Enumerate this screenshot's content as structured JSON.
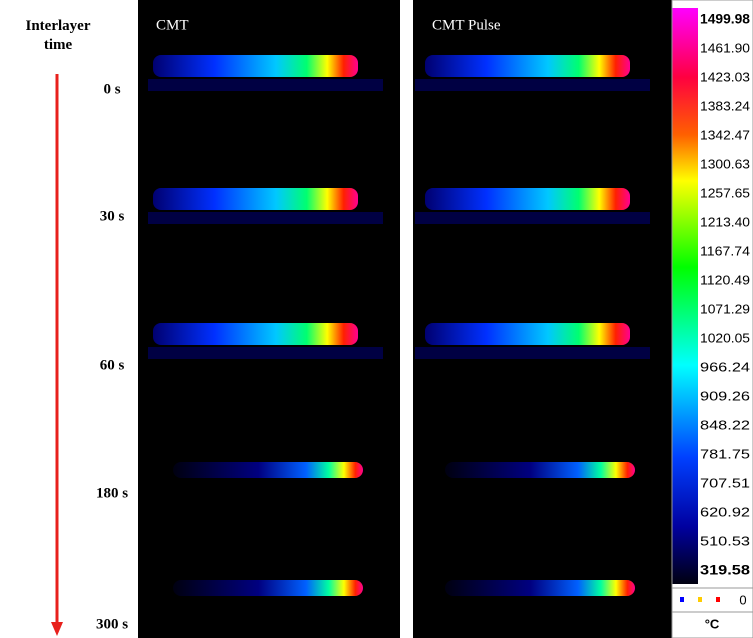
{
  "figure": {
    "axis_label": "Interlayer time",
    "times": [
      "0 s",
      "30 s",
      "60 s",
      "180 s",
      "300 s"
    ],
    "panels": [
      "CMT",
      "CMT Pulse"
    ],
    "colorbar": {
      "labels": [
        "1499.98",
        "1461.90",
        "1423.03",
        "1383.24",
        "1342.47",
        "1300.63",
        "1257.65",
        "1213.40",
        "1167.74",
        "1120.49",
        "1071.29",
        "1020.05",
        "966.24",
        "909.26",
        "848.22",
        "781.75",
        "707.51",
        "620.92",
        "510.53",
        "319.58"
      ],
      "counter": "0",
      "unit": "°C"
    }
  }
}
